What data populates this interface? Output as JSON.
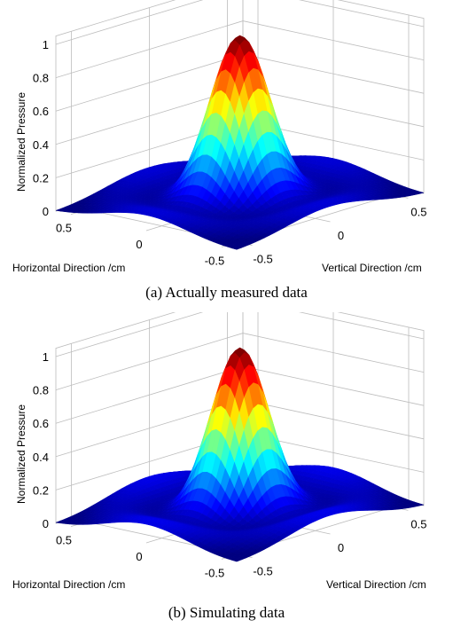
{
  "colormap": "jet",
  "chart_data": [
    {
      "type": "surface",
      "caption": "(a) Actually measured data",
      "xlabel": "Horizontal Direction /cm",
      "ylabel": "Vertical Direction /cm",
      "zlabel": "Normalized Pressure",
      "xticks": [
        "0.5",
        "0",
        "-0.5"
      ],
      "yticks": [
        "-0.5",
        "0",
        "0.5"
      ],
      "zticks": [
        "0",
        "0.2",
        "0.4",
        "0.6",
        "0.8",
        "1"
      ],
      "xlim": [
        -0.6,
        0.6
      ],
      "ylim": [
        -0.6,
        0.6
      ],
      "zlim": [
        0,
        1
      ],
      "grid": true,
      "peak": {
        "x": 0,
        "y": 0,
        "z": 1.0
      },
      "main_lobe_half_width_cm": 0.25,
      "side_lobe_level": 0.1
    },
    {
      "type": "surface",
      "caption": "(b) Simulating data",
      "xlabel": "Horizontal Direction /cm",
      "ylabel": "Vertical Direction /cm",
      "zlabel": "Normalized Pressure",
      "xticks": [
        "0.5",
        "0",
        "-0.5"
      ],
      "yticks": [
        "-0.5",
        "0",
        "0.5"
      ],
      "zticks": [
        "0",
        "0.2",
        "0.4",
        "0.6",
        "0.8",
        "1"
      ],
      "xlim": [
        -0.6,
        0.6
      ],
      "ylim": [
        -0.6,
        0.6
      ],
      "zlim": [
        0,
        1
      ],
      "grid": true,
      "peak": {
        "x": 0,
        "y": 0,
        "z": 1.0
      },
      "main_lobe_half_width_cm": 0.24,
      "side_lobe_level": 0.12
    }
  ]
}
